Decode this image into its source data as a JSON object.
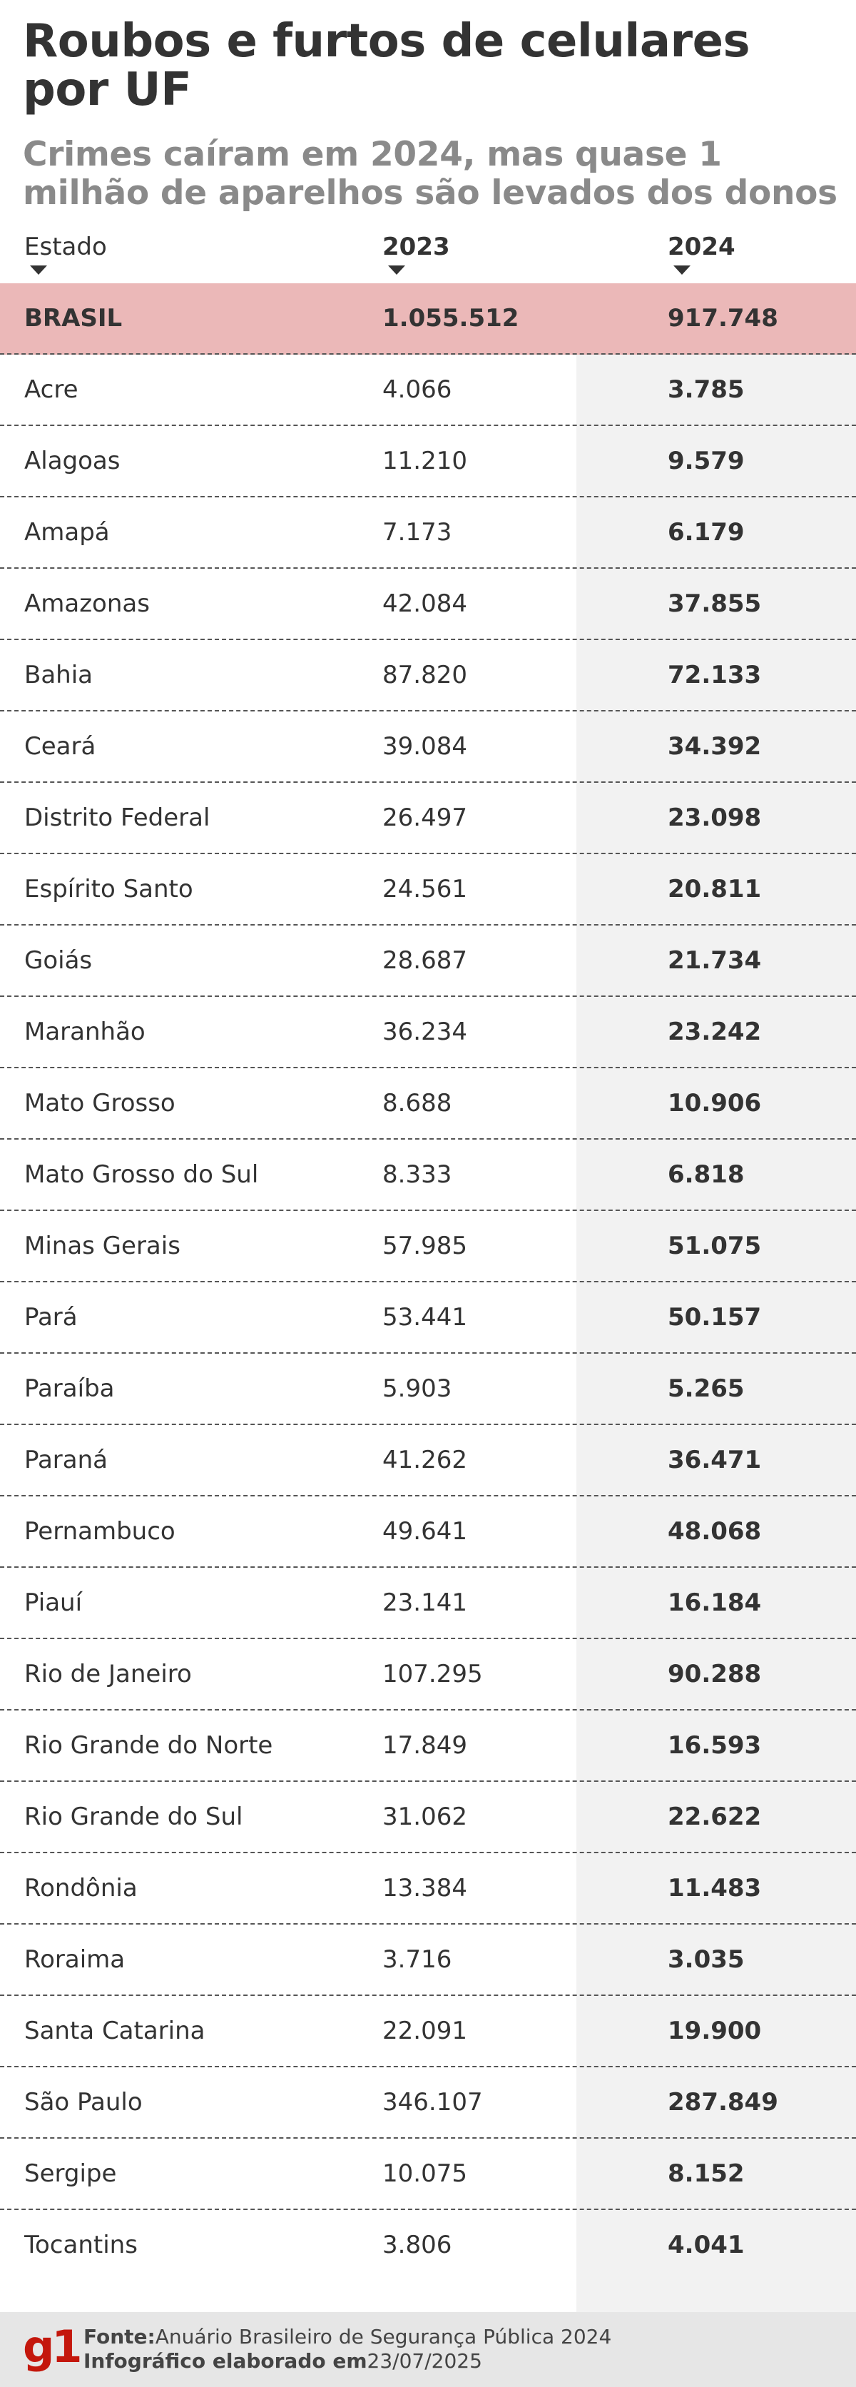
{
  "title": "Roubos e furtos de celulares por UF",
  "subtitle": "Crimes caíram em 2024, mas quase 1 milhão de aparelhos são levados dos donos",
  "columns": {
    "state": "Estado",
    "y2023": "2023",
    "y2024": "2024"
  },
  "total": {
    "state": "BRASIL",
    "y2023": "1.055.512",
    "y2024": "917.748"
  },
  "rows": [
    {
      "state": "Acre",
      "y2023": "4.066",
      "y2024": "3.785"
    },
    {
      "state": "Alagoas",
      "y2023": "11.210",
      "y2024": "9.579"
    },
    {
      "state": "Amapá",
      "y2023": "7.173",
      "y2024": "6.179"
    },
    {
      "state": "Amazonas",
      "y2023": "42.084",
      "y2024": "37.855"
    },
    {
      "state": "Bahia",
      "y2023": "87.820",
      "y2024": "72.133"
    },
    {
      "state": "Ceará",
      "y2023": "39.084",
      "y2024": "34.392"
    },
    {
      "state": "Distrito Federal",
      "y2023": "26.497",
      "y2024": "23.098"
    },
    {
      "state": "Espírito Santo",
      "y2023": "24.561",
      "y2024": "20.811"
    },
    {
      "state": "Goiás",
      "y2023": "28.687",
      "y2024": "21.734"
    },
    {
      "state": "Maranhão",
      "y2023": "36.234",
      "y2024": "23.242"
    },
    {
      "state": "Mato Grosso",
      "y2023": "8.688",
      "y2024": "10.906"
    },
    {
      "state": "Mato Grosso do Sul",
      "y2023": "8.333",
      "y2024": "6.818"
    },
    {
      "state": "Minas Gerais",
      "y2023": "57.985",
      "y2024": "51.075"
    },
    {
      "state": "Pará",
      "y2023": "53.441",
      "y2024": "50.157"
    },
    {
      "state": "Paraíba",
      "y2023": "5.903",
      "y2024": "5.265"
    },
    {
      "state": "Paraná",
      "y2023": "41.262",
      "y2024": "36.471"
    },
    {
      "state": "Pernambuco",
      "y2023": "49.641",
      "y2024": "48.068"
    },
    {
      "state": "Piauí",
      "y2023": "23.141",
      "y2024": "16.184"
    },
    {
      "state": "Rio de Janeiro",
      "y2023": "107.295",
      "y2024": "90.288"
    },
    {
      "state": "Rio Grande do Norte",
      "y2023": "17.849",
      "y2024": "16.593"
    },
    {
      "state": "Rio Grande do Sul",
      "y2023": "31.062",
      "y2024": "22.622"
    },
    {
      "state": "Rondônia",
      "y2023": "13.384",
      "y2024": "11.483"
    },
    {
      "state": "Roraima",
      "y2023": "3.716",
      "y2024": "3.035"
    },
    {
      "state": "Santa Catarina",
      "y2023": "22.091",
      "y2024": "19.900"
    },
    {
      "state": "São Paulo",
      "y2023": "346.107",
      "y2024": "287.849"
    },
    {
      "state": "Sergipe",
      "y2023": "10.075",
      "y2024": "8.152"
    },
    {
      "state": "Tocantins",
      "y2023": "3.806",
      "y2024": "4.041"
    }
  ],
  "footer": {
    "logo": "g1",
    "source_label": "Fonte:",
    "source_text": "Anuário Brasileiro de Segurança Pública 2024",
    "credit_label": "Infográfico elaborado em",
    "credit_date": "23/07/2025"
  },
  "colors": {
    "total_row_bg": "#ebb8b8",
    "accent_brand": "#c4170c",
    "shade_2024": "#f2f2f2",
    "subtitle": "#8a8a8a"
  },
  "chart_data": {
    "type": "table",
    "title": "Roubos e furtos de celulares por UF",
    "subtitle": "Crimes caíram em 2024, mas quase 1 milhão de aparelhos são levados dos donos",
    "columns": [
      "Estado",
      "2023",
      "2024"
    ],
    "total": {
      "Estado": "BRASIL",
      "2023": 1055512,
      "2024": 917748
    },
    "rows": [
      [
        "Acre",
        4066,
        3785
      ],
      [
        "Alagoas",
        11210,
        9579
      ],
      [
        "Amapá",
        7173,
        6179
      ],
      [
        "Amazonas",
        42084,
        37855
      ],
      [
        "Bahia",
        87820,
        72133
      ],
      [
        "Ceará",
        39084,
        34392
      ],
      [
        "Distrito Federal",
        26497,
        23098
      ],
      [
        "Espírito Santo",
        24561,
        20811
      ],
      [
        "Goiás",
        28687,
        21734
      ],
      [
        "Maranhão",
        36234,
        23242
      ],
      [
        "Mato Grosso",
        8688,
        10906
      ],
      [
        "Mato Grosso do Sul",
        8333,
        6818
      ],
      [
        "Minas Gerais",
        57985,
        51075
      ],
      [
        "Pará",
        53441,
        50157
      ],
      [
        "Paraíba",
        5903,
        5265
      ],
      [
        "Paraná",
        41262,
        36471
      ],
      [
        "Pernambuco",
        49641,
        48068
      ],
      [
        "Piauí",
        23141,
        16184
      ],
      [
        "Rio de Janeiro",
        107295,
        90288
      ],
      [
        "Rio Grande do Norte",
        17849,
        16593
      ],
      [
        "Rio Grande do Sul",
        31062,
        22622
      ],
      [
        "Rondônia",
        13384,
        11483
      ],
      [
        "Roraima",
        3716,
        3035
      ],
      [
        "Santa Catarina",
        22091,
        19900
      ],
      [
        "São Paulo",
        346107,
        287849
      ],
      [
        "Sergipe",
        10075,
        8152
      ],
      [
        "Tocantins",
        3806,
        4041
      ]
    ]
  }
}
